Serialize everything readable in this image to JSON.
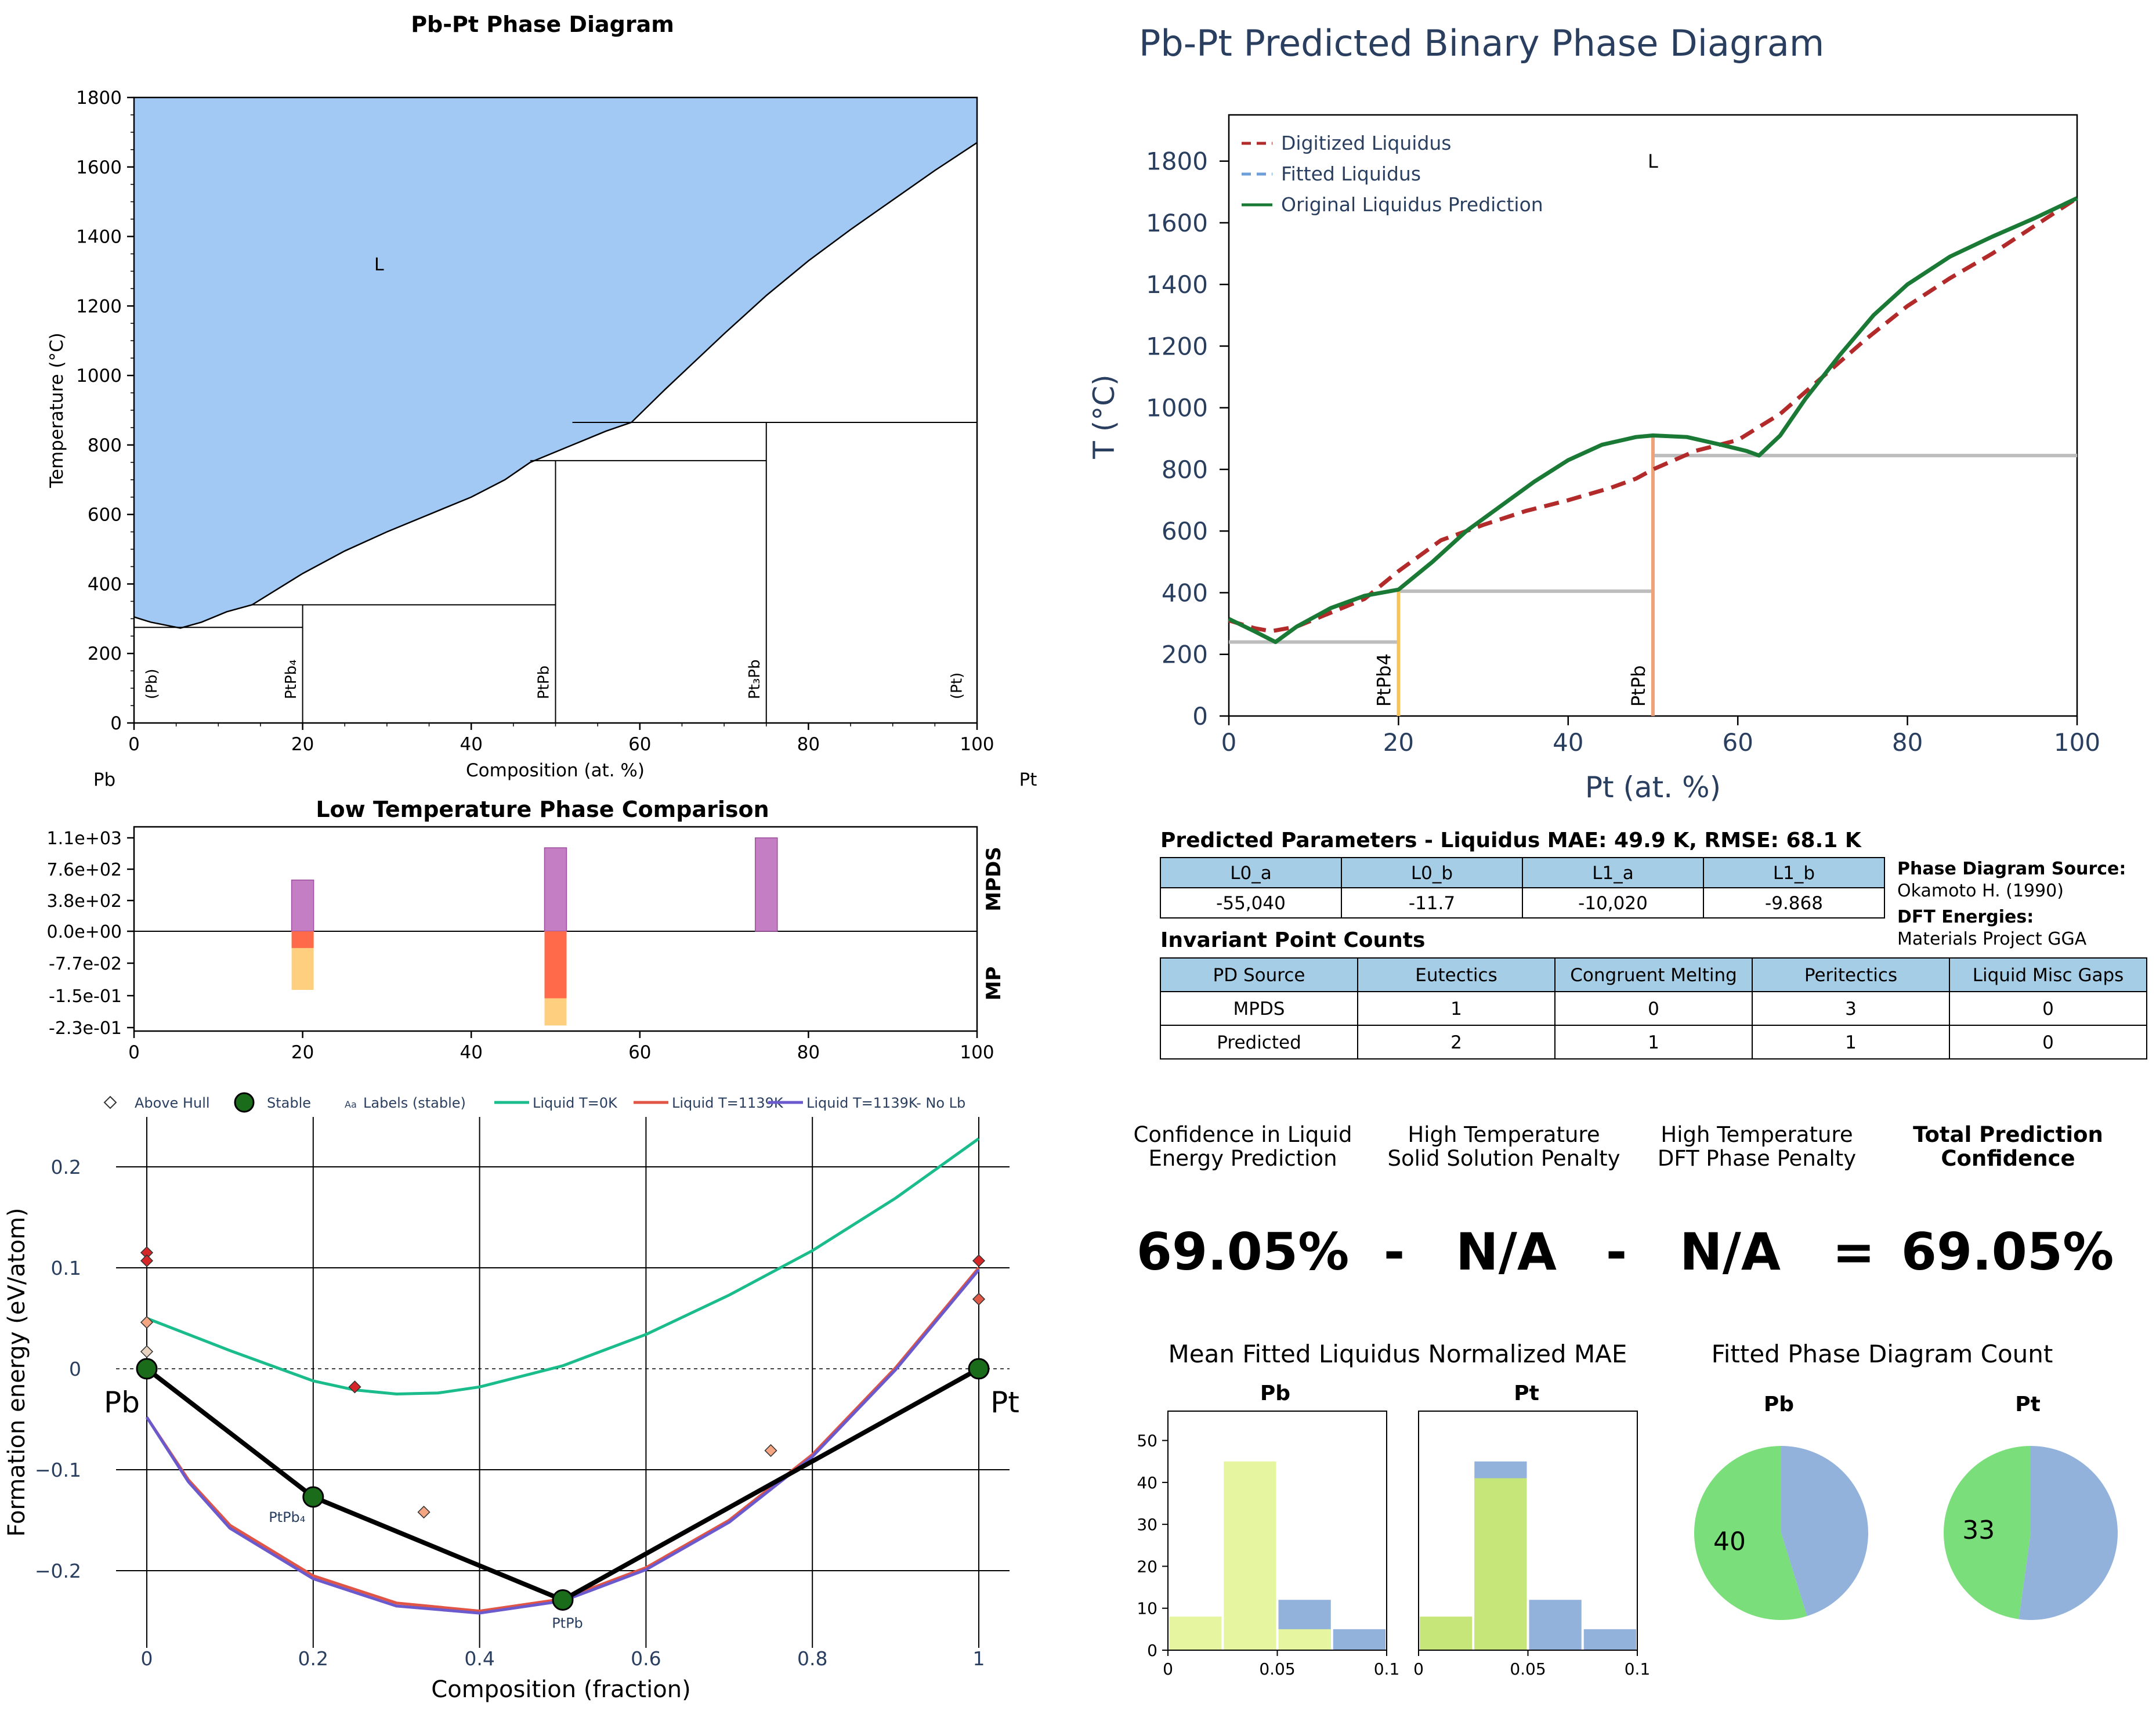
{
  "chart_data": [
    {
      "id": "mpds",
      "type": "line",
      "title": "Pb-Pt Phase Diagram",
      "xlabel": "Composition (at. %)",
      "ylabel": "Temperature (°C)",
      "xlim": [
        0,
        100
      ],
      "ylim": [
        0,
        1800
      ],
      "xticks": [
        "0",
        "20",
        "40",
        "60",
        "80",
        "100"
      ],
      "yticks": [
        "0",
        "200",
        "400",
        "600",
        "800",
        "1000",
        "1200",
        "1400",
        "1600",
        "1800"
      ],
      "grid": false,
      "corner_left": "Pb",
      "corner_right": "Pt",
      "region_label": "L",
      "liquid_color": "#a1c9f4",
      "liquidus": [
        [
          0,
          305
        ],
        [
          2,
          290
        ],
        [
          5.5,
          273
        ],
        [
          8,
          290
        ],
        [
          11,
          320
        ],
        [
          14,
          340
        ],
        [
          17,
          385
        ],
        [
          20,
          430
        ],
        [
          25,
          495
        ],
        [
          30,
          550
        ],
        [
          35,
          600
        ],
        [
          40,
          650
        ],
        [
          44,
          700
        ],
        [
          47,
          750
        ],
        [
          52,
          800
        ],
        [
          56,
          840
        ],
        [
          59,
          865
        ],
        [
          63,
          960
        ],
        [
          70,
          1120
        ],
        [
          75,
          1230
        ],
        [
          80,
          1330
        ],
        [
          85,
          1420
        ],
        [
          90,
          1505
        ],
        [
          95,
          1590
        ],
        [
          100,
          1670
        ]
      ],
      "horizontal_lines": [
        {
          "x": [
            0,
            20
          ],
          "y": 275
        },
        {
          "x": [
            14,
            50
          ],
          "y": 340
        },
        {
          "x": [
            47,
            75
          ],
          "y": 755
        },
        {
          "x": [
            52,
            100
          ],
          "y": 865
        }
      ],
      "vertical_lines": [
        {
          "x": 20,
          "y": [
            0,
            340
          ]
        },
        {
          "x": 50,
          "y": [
            0,
            755
          ]
        },
        {
          "x": 75,
          "y": [
            0,
            865
          ]
        }
      ],
      "phase_labels": [
        {
          "x": 2,
          "label": "(Pb)"
        },
        {
          "x": 18.5,
          "label": "PtPb₄"
        },
        {
          "x": 48.5,
          "label": "PtPb"
        },
        {
          "x": 73.5,
          "label": "Pt₃Pb"
        },
        {
          "x": 97.5,
          "label": "(Pt)"
        }
      ]
    },
    {
      "id": "predicted",
      "type": "line",
      "title": "Pb-Pt Predicted Binary Phase Diagram",
      "xlabel": "Pt (at. %)",
      "ylabel": "T (°C)",
      "xlim": [
        0,
        100
      ],
      "ylim": [
        0,
        1950
      ],
      "xticks": [
        "0",
        "20",
        "40",
        "60",
        "80",
        "100"
      ],
      "yticks": [
        "0",
        "200",
        "400",
        "600",
        "800",
        "1000",
        "1200",
        "1400",
        "1600",
        "1800"
      ],
      "grid": false,
      "legend": "top-left",
      "region_label": "L",
      "series": [
        {
          "name": "Digitized Liquidus",
          "style": "dashed",
          "color": "#b22a2a",
          "points": [
            [
              0,
              310
            ],
            [
              3,
              285
            ],
            [
              5,
              275
            ],
            [
              8,
              290
            ],
            [
              12,
              335
            ],
            [
              16,
              380
            ],
            [
              20,
              470
            ],
            [
              25,
              570
            ],
            [
              30,
              620
            ],
            [
              35,
              665
            ],
            [
              40,
              700
            ],
            [
              45,
              740
            ],
            [
              48,
              770
            ],
            [
              50,
              800
            ],
            [
              55,
              860
            ],
            [
              60,
              895
            ],
            [
              65,
              980
            ],
            [
              70,
              1100
            ],
            [
              75,
              1220
            ],
            [
              80,
              1330
            ],
            [
              85,
              1420
            ],
            [
              90,
              1500
            ],
            [
              95,
              1590
            ],
            [
              100,
              1680
            ]
          ]
        },
        {
          "name": "Fitted Liquidus",
          "style": "dashed",
          "color": "#6f9fd8",
          "points": []
        },
        {
          "name": "Original Liquidus Prediction",
          "style": "solid",
          "color": "#1a7a35",
          "points": [
            [
              0,
              315
            ],
            [
              3,
              275
            ],
            [
              5.5,
              240
            ],
            [
              8,
              290
            ],
            [
              12,
              350
            ],
            [
              16,
              390
            ],
            [
              20,
              410
            ],
            [
              24,
              500
            ],
            [
              28,
              600
            ],
            [
              32,
              680
            ],
            [
              36,
              760
            ],
            [
              40,
              830
            ],
            [
              44,
              880
            ],
            [
              48,
              905
            ],
            [
              50,
              910
            ],
            [
              54,
              905
            ],
            [
              58,
              880
            ],
            [
              61,
              860
            ],
            [
              62.5,
              845
            ],
            [
              65,
              910
            ],
            [
              68,
              1030
            ],
            [
              72,
              1170
            ],
            [
              76,
              1300
            ],
            [
              80,
              1400
            ],
            [
              85,
              1490
            ],
            [
              90,
              1555
            ],
            [
              95,
              1615
            ],
            [
              100,
              1680
            ]
          ]
        }
      ],
      "horizontal_lines": [
        {
          "x": [
            0,
            20
          ],
          "y": 240
        },
        {
          "x": [
            20,
            50
          ],
          "y": 405
        },
        {
          "x": [
            50,
            100
          ],
          "y": 845
        }
      ],
      "compound_lines": [
        {
          "x": 20,
          "label": "PtPb4",
          "color": "#f5c45e",
          "ytop": 405
        },
        {
          "x": 50,
          "label": "PtPb",
          "color": "#eda27a",
          "ytop": 910
        }
      ]
    },
    {
      "id": "lowtemp",
      "type": "bar",
      "title": "Low Temperature Phase Comparison",
      "xlim": [
        0,
        100
      ],
      "xticks": [
        "0",
        "20",
        "40",
        "60",
        "80",
        "100"
      ],
      "yticks": [
        "1.1e+03",
        "7.6e+02",
        "3.8e+02",
        "0.0e+00",
        "-7.7e-02",
        "-1.5e-01",
        "-2.3e-01"
      ],
      "top_label": "MPDS",
      "bottom_label": "MP",
      "mpds_bars": [
        {
          "x": 20,
          "value": 620
        },
        {
          "x": 50,
          "value": 1010
        },
        {
          "x": 75,
          "value": 1130
        }
      ],
      "mp_bars": [
        {
          "x": 20,
          "stable": -0.04,
          "above": -0.14
        },
        {
          "x": 50,
          "stable": -0.16,
          "above": -0.225
        }
      ],
      "colors": {
        "mpds": "#c47fc4",
        "stable": "#ff6b4a",
        "above": "#ffcf80"
      }
    },
    {
      "id": "hull",
      "type": "scatter",
      "xlabel": "Composition (fraction)",
      "ylabel": "Formation energy (eV/atom)",
      "xlim": [
        -0.05,
        1.05
      ],
      "ylim": [
        -0.27,
        0.245
      ],
      "xticks": [
        "0",
        "0.2",
        "0.4",
        "0.6",
        "0.8",
        "1"
      ],
      "yticks": [
        "0.2",
        "0.1",
        "0",
        "−0.1",
        "−0.2"
      ],
      "grid": true,
      "legend": "top",
      "legend_entries": [
        "Above Hull",
        "Stable",
        "Labels (stable)",
        "Liquid T=0K",
        "Liquid T=1139K",
        "Liquid T=1139K- No Lb"
      ],
      "legend_label_icon": "Aa",
      "stable_points": [
        {
          "x": 0,
          "y": 0,
          "label": "Pb"
        },
        {
          "x": 0.2,
          "y": -0.127,
          "label": "PtPb₄"
        },
        {
          "x": 0.5,
          "y": -0.229,
          "label": "PtPb"
        },
        {
          "x": 1,
          "y": 0,
          "label": "Pt"
        }
      ],
      "above_hull_points": [
        {
          "x": 0,
          "y": 0.115,
          "color": "#d62728"
        },
        {
          "x": 0,
          "y": 0.107,
          "color": "#d62728"
        },
        {
          "x": 0,
          "y": 0.046,
          "color": "#f4a582"
        },
        {
          "x": 0,
          "y": 0.017,
          "color": "#e8d3c0"
        },
        {
          "x": 0.25,
          "y": -0.018,
          "color": "#d62728"
        },
        {
          "x": 0.333,
          "y": -0.142,
          "color": "#f4a582"
        },
        {
          "x": 0.75,
          "y": -0.081,
          "color": "#f4a582"
        },
        {
          "x": 1,
          "y": 0.107,
          "color": "#d62728"
        },
        {
          "x": 1,
          "y": 0.069,
          "color": "#e05a4a"
        }
      ],
      "series": [
        {
          "name": "Liquid T=0K",
          "color": "#1abc8c",
          "points": [
            [
              0,
              0.05
            ],
            [
              0.1,
              0.018
            ],
            [
              0.2,
              -0.012
            ],
            [
              0.25,
              -0.021
            ],
            [
              0.3,
              -0.025
            ],
            [
              0.35,
              -0.024
            ],
            [
              0.4,
              -0.018
            ],
            [
              0.5,
              0.003
            ],
            [
              0.6,
              0.034
            ],
            [
              0.7,
              0.073
            ],
            [
              0.8,
              0.117
            ],
            [
              0.9,
              0.169
            ],
            [
              1,
              0.228
            ]
          ]
        },
        {
          "name": "Liquid T=1139K",
          "color": "#e05545",
          "points": [
            [
              0,
              -0.048
            ],
            [
              0.05,
              -0.11
            ],
            [
              0.1,
              -0.155
            ],
            [
              0.2,
              -0.205
            ],
            [
              0.3,
              -0.232
            ],
            [
              0.4,
              -0.24
            ],
            [
              0.5,
              -0.228
            ],
            [
              0.6,
              -0.197
            ],
            [
              0.7,
              -0.15
            ],
            [
              0.8,
              -0.085
            ],
            [
              0.9,
              0.001
            ],
            [
              1,
              0.1
            ]
          ]
        },
        {
          "name": "Liquid T=1139K- No Lb",
          "color": "#6a5acd",
          "points": [
            [
              0,
              -0.048
            ],
            [
              0.05,
              -0.112
            ],
            [
              0.1,
              -0.158
            ],
            [
              0.2,
              -0.208
            ],
            [
              0.3,
              -0.235
            ],
            [
              0.4,
              -0.242
            ],
            [
              0.5,
              -0.23
            ],
            [
              0.6,
              -0.199
            ],
            [
              0.7,
              -0.152
            ],
            [
              0.8,
              -0.087
            ],
            [
              0.9,
              -0.001
            ],
            [
              1,
              0.098
            ]
          ]
        }
      ]
    },
    {
      "id": "mae_pb",
      "type": "bar",
      "title": "Pb",
      "xlim": [
        0,
        0.1
      ],
      "ylim": [
        0,
        57
      ],
      "xticks": [
        "0",
        "0.05",
        "0.1"
      ],
      "yticks": [
        "0",
        "10",
        "20",
        "30",
        "40",
        "50"
      ],
      "bars": [
        {
          "x0": 0,
          "x1": 0.025,
          "value": 8,
          "color": "#e6f5a0"
        },
        {
          "x0": 0.025,
          "x1": 0.05,
          "value": 45,
          "color": "#e6f5a0"
        },
        {
          "x0": 0.05,
          "x1": 0.075,
          "value": 12,
          "color": "#92b2dc"
        },
        {
          "x0": 0.05,
          "x1": 0.075,
          "value": 5,
          "color": "#e6f5a0"
        },
        {
          "x0": 0.075,
          "x1": 0.1,
          "value": 5,
          "color": "#92b2dc"
        }
      ]
    },
    {
      "id": "mae_pt",
      "type": "bar",
      "title": "Pt",
      "xlim": [
        0,
        0.1
      ],
      "ylim": [
        0,
        57
      ],
      "xticks": [
        "0",
        "0.05",
        "0.1"
      ],
      "bars": [
        {
          "x0": 0,
          "x1": 0.025,
          "value": 8,
          "color": "#c7e67a"
        },
        {
          "x0": 0.025,
          "x1": 0.05,
          "value": 45,
          "color": "#92b2dc"
        },
        {
          "x0": 0.025,
          "x1": 0.05,
          "value": 41,
          "color": "#c7e67a"
        },
        {
          "x0": 0.05,
          "x1": 0.075,
          "value": 12,
          "color": "#92b2dc"
        },
        {
          "x0": 0.075,
          "x1": 0.1,
          "value": 5,
          "color": "#92b2dc"
        }
      ]
    },
    {
      "id": "pie_pb",
      "type": "pie",
      "title": "Pb",
      "slices": [
        {
          "value": 40,
          "color": "#7adf7a",
          "label": "40"
        },
        {
          "value": 33,
          "color": "#92b2dc"
        }
      ]
    },
    {
      "id": "pie_pt",
      "type": "pie",
      "title": "Pt",
      "slices": [
        {
          "value": 33,
          "color": "#7adf7a",
          "label": "33"
        },
        {
          "value": 36,
          "color": "#92b2dc"
        }
      ]
    }
  ],
  "panels": {
    "mae_title": "Mean Fitted Liquidus Normalized MAE",
    "count_title": "Fitted Phase Diagram Count"
  },
  "params": {
    "title": "Predicted Parameters - Liquidus MAE: 49.9 K, RMSE: 68.1 K",
    "headers": [
      "L0_a",
      "L0_b",
      "L1_a",
      "L1_b"
    ],
    "values": [
      "-55,040",
      "-11.7",
      "-10,020",
      "-9.868"
    ],
    "source_label": "Phase Diagram Source:",
    "source_value": "Okamoto H. (1990)",
    "dft_label": "DFT Energies:",
    "dft_value": "Materials Project GGA"
  },
  "invariants": {
    "title": "Invariant Point Counts",
    "headers": [
      "PD Source",
      "Eutectics",
      "Congruent Melting",
      "Peritectics",
      "Liquid Misc Gaps"
    ],
    "rows": [
      [
        "MPDS",
        "1",
        "0",
        "3",
        "0"
      ],
      [
        "Predicted",
        "2",
        "1",
        "1",
        "0"
      ]
    ]
  },
  "confidence": {
    "h1a": "Confidence in Liquid",
    "h1b": "Energy Prediction",
    "h2a": "High Temperature",
    "h2b": "Solid Solution Penalty",
    "h3a": "High Temperature",
    "h3b": "DFT Phase Penalty",
    "h4a": "Total Prediction",
    "h4b": "Confidence",
    "v1": "69.05%",
    "op1": "-",
    "v2": "N/A",
    "op2": "-",
    "v3": "N/A",
    "op3": "=",
    "v4": "69.05%"
  },
  "colors": {
    "header_fill": "#a6cde6",
    "title_blue": "#2a3f5f"
  }
}
